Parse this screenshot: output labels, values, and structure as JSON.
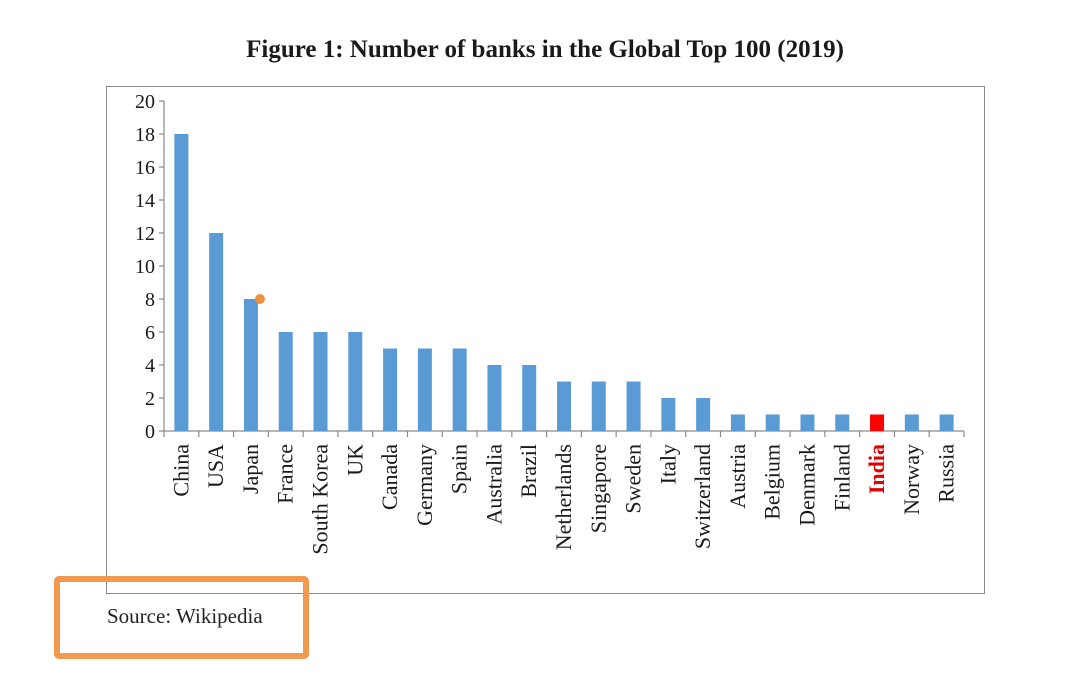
{
  "figure_title": "Figure 1: Number of banks in the Global Top 100 (2019)",
  "source_note": "Source: Wikipedia",
  "colors": {
    "bar": "#5b9bd5",
    "highlight_bar": "#ff0000",
    "highlight_label": "#e00000",
    "marker": "#ed8f3e",
    "annotation_box": "#f2984f",
    "axis": "#8a8a8a"
  },
  "chart_data": {
    "type": "bar",
    "title": "Figure 1: Number of banks in the Global Top 100 (2019)",
    "xlabel": "",
    "ylabel": "",
    "ylim": [
      0,
      20
    ],
    "yticks": [
      "0",
      "2",
      "4",
      "6",
      "8",
      "10",
      "12",
      "14",
      "16",
      "18",
      "20"
    ],
    "grid": false,
    "categories": [
      "China",
      "USA",
      "Japan",
      "France",
      "South Korea",
      "UK",
      "Canada",
      "Germany",
      "Spain",
      "Australia",
      "Brazil",
      "Netherlands",
      "Singapore",
      "Sweden",
      "Italy",
      "Switzerland",
      "Austria",
      "Belgium",
      "Denmark",
      "Finland",
      "India",
      "Norway",
      "Russia"
    ],
    "values": [
      18,
      12,
      8,
      6,
      6,
      6,
      5,
      5,
      5,
      4,
      4,
      3,
      3,
      3,
      2,
      2,
      1,
      1,
      1,
      1,
      1,
      1,
      1
    ],
    "highlighted_category": "India",
    "marker_point": {
      "category": "Japan",
      "value": 8
    }
  }
}
